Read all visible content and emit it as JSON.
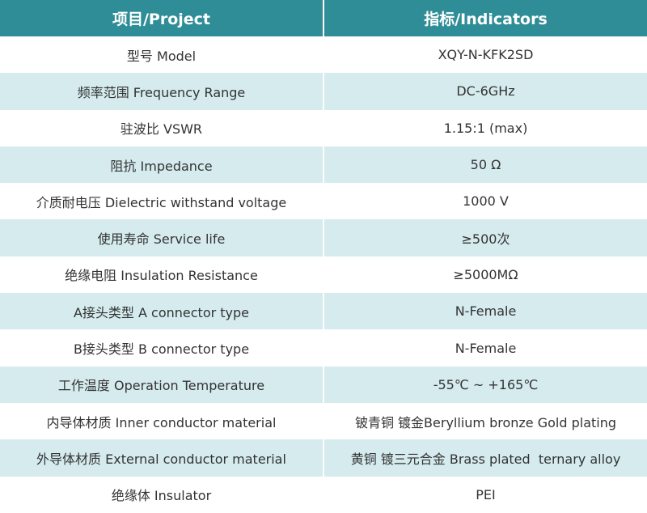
{
  "table": {
    "header": [
      "项目/Project",
      "指标/Indicators"
    ],
    "rows": [
      [
        "型号 Model",
        "XQY-N-KFK2SD"
      ],
      [
        "频率范围 Frequency Range",
        "DC-6GHz"
      ],
      [
        "驻波比 VSWR",
        "1.15:1 (max)"
      ],
      [
        "阻抗 Impedance",
        "50 Ω"
      ],
      [
        "介质耐电压 Dielectric withstand voltage",
        "1000 V"
      ],
      [
        "使用寿命 Service life",
        "≥500次"
      ],
      [
        "绝缘电阻 Insulation Resistance",
        "≥5000MΩ"
      ],
      [
        "A接头类型 A connector type",
        "N-Female"
      ],
      [
        "B接头类型 B connector type",
        "N-Female"
      ],
      [
        "工作温度 Operation Temperature",
        "-55℃ ~ +165℃"
      ],
      [
        "内导体材质 Inner conductor material",
        "铍青铜 镀金Beryllium bronze Gold plating"
      ],
      [
        "外导体材质 External conductor material",
        "黄铜 镀三元合金 Brass plated  ternary alloy"
      ],
      [
        "绝缘体 Insulator",
        "PEI"
      ]
    ]
  }
}
